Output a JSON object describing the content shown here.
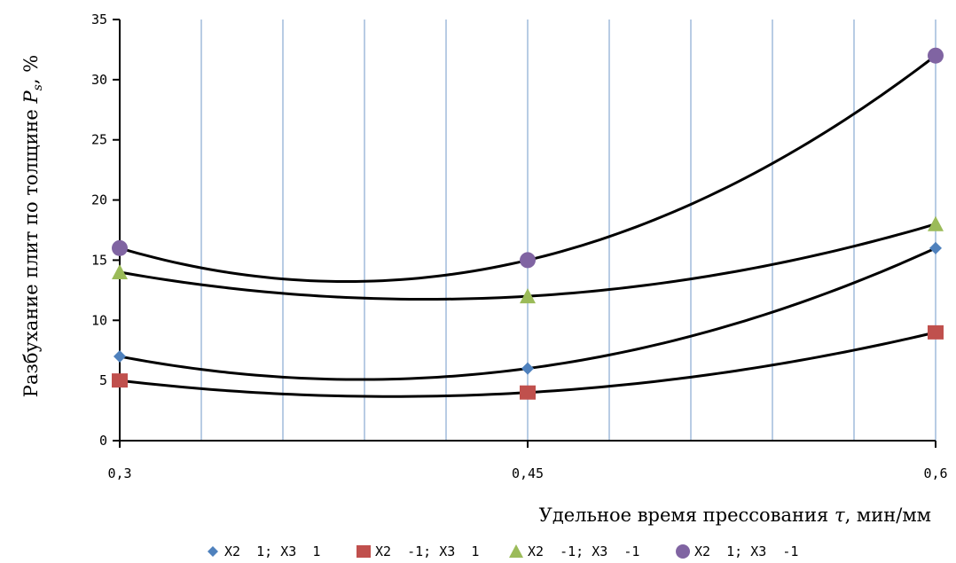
{
  "chart_data": {
    "type": "line",
    "title": "",
    "xlabel_prefix": "Удельное время прессования ",
    "xlabel_var": "τ",
    "xlabel_suffix": ", мин/мм",
    "ylabel_prefix": "Разбухание плит по толщине ",
    "ylabel_var": "P",
    "ylabel_sub": "s",
    "ylabel_suffix": ", %",
    "x": [
      0.3,
      0.45,
      0.6
    ],
    "x_tick_labels": [
      "0,3",
      "0,45",
      "0,6"
    ],
    "xlim": [
      0.3,
      0.6
    ],
    "ylim": [
      0,
      35
    ],
    "y_ticks": [
      0,
      5,
      10,
      15,
      20,
      25,
      30,
      35
    ],
    "y_tick_labels": [
      "0",
      "5",
      "10",
      "15",
      "20",
      "25",
      "30",
      "35"
    ],
    "vertical_grid": true,
    "horizontal_grid": false,
    "vertical_grid_color": "#b8cce4",
    "curve_color": "#000000",
    "legend_position": "bottom",
    "series": [
      {
        "name": "X2  1; X3  1",
        "values": [
          7,
          6,
          16
        ],
        "marker": "diamond",
        "color": "#4f81bd"
      },
      {
        "name": "X2  -1; X3  1",
        "values": [
          5,
          4,
          9
        ],
        "marker": "square",
        "color": "#c0504d"
      },
      {
        "name": "X2  -1; X3  -1",
        "values": [
          14,
          12,
          18
        ],
        "marker": "triangle",
        "color": "#9bbb59"
      },
      {
        "name": "X2  1; X3  -1",
        "values": [
          16,
          15,
          32
        ],
        "marker": "circle",
        "color": "#8064a2"
      }
    ]
  }
}
